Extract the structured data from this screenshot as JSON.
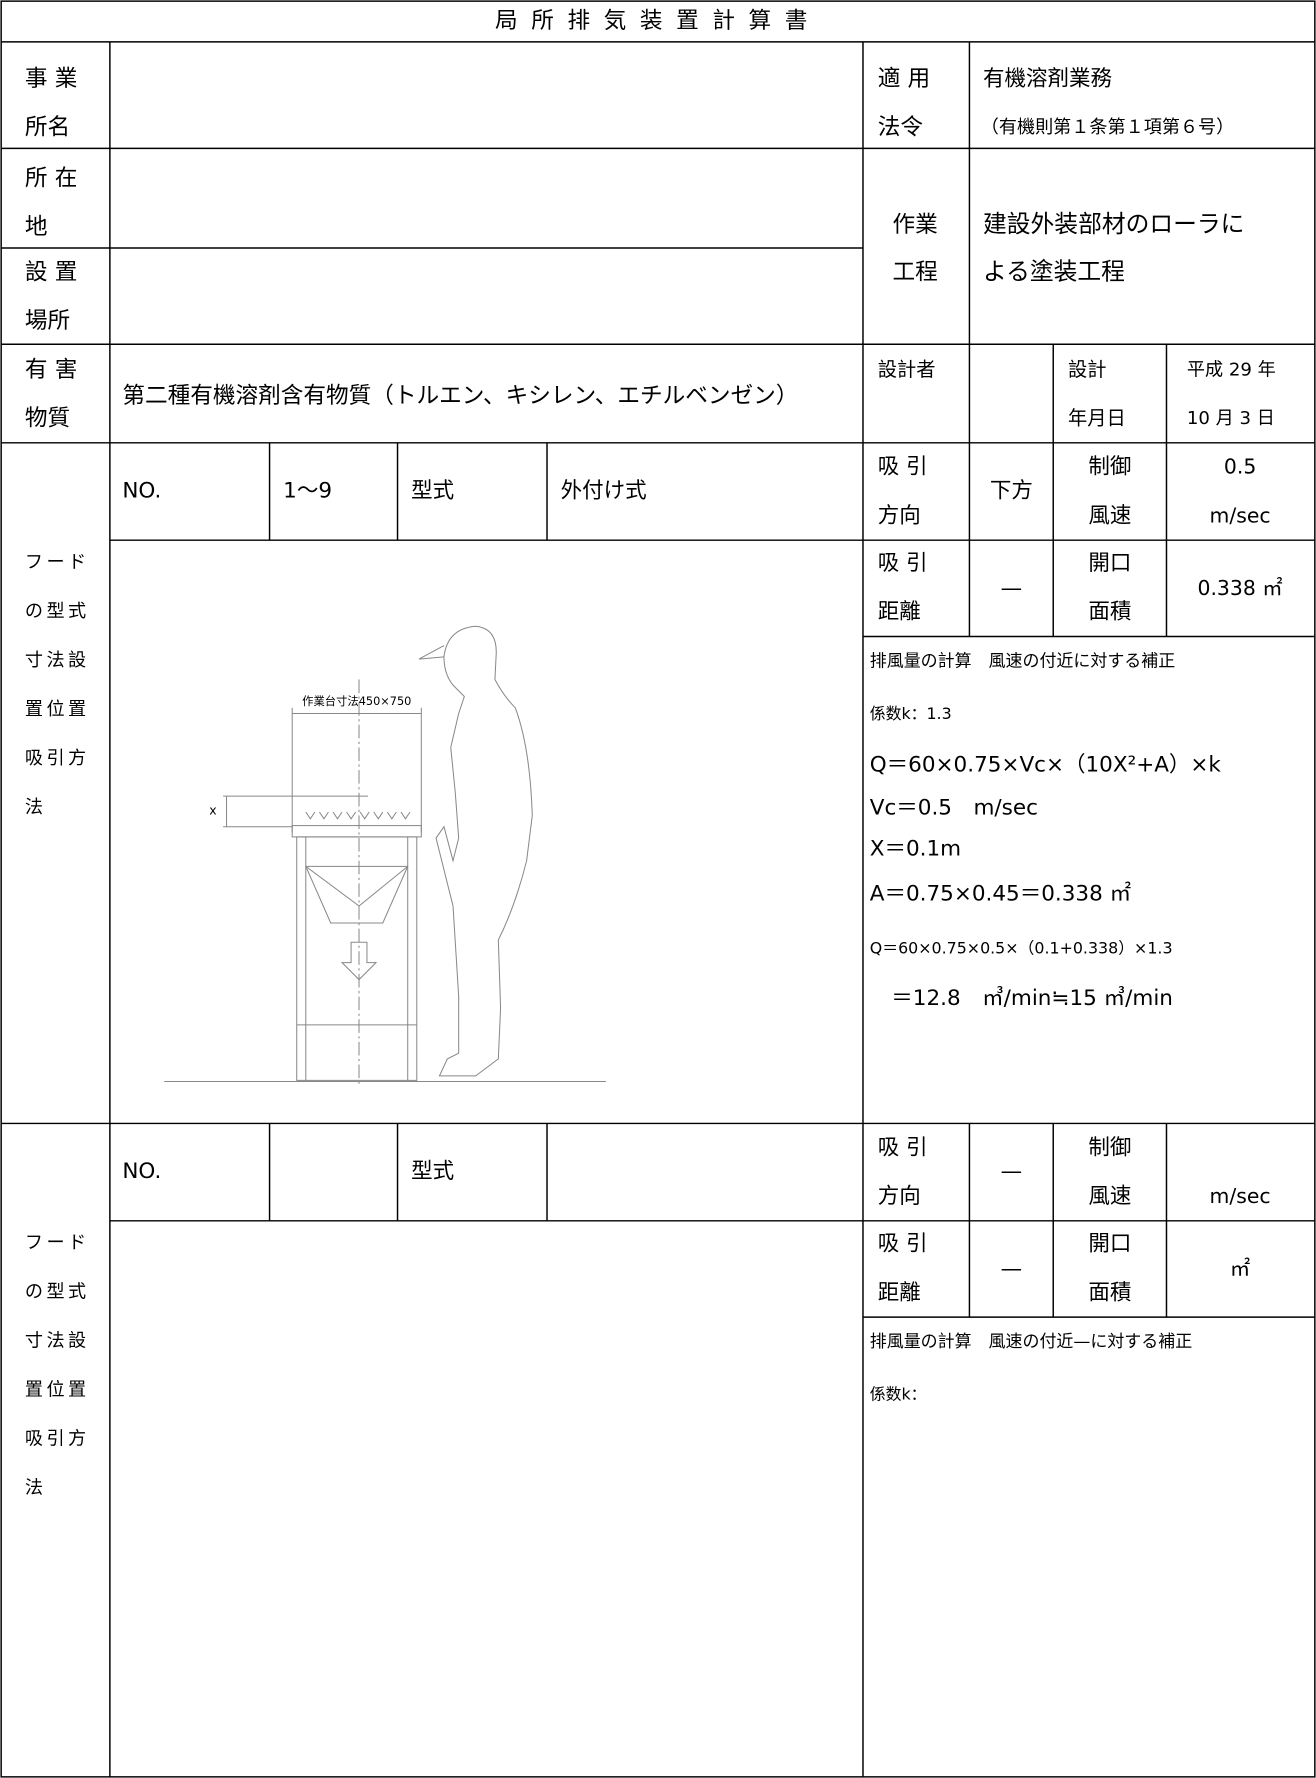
{
  "header": {
    "title": "局所排気装置計算書"
  },
  "info": {
    "office_label": [
      "事 業",
      "所名"
    ],
    "law_label": [
      "適 用",
      "法令"
    ],
    "law": "有機溶剤業務",
    "law_note": "（有機則第１条第１項第６号）",
    "location_label": [
      "所 在",
      "地"
    ],
    "place_label": [
      "設 置",
      "場所"
    ],
    "process_label": [
      "作業",
      "工程"
    ],
    "process": [
      "建設外装部材のローラに",
      "よる塗装工程"
    ],
    "hazard_label": [
      "有 害",
      "物質"
    ],
    "hazard": "第二種有機溶剤含有物質（トルエン、キシレン、エチルベンゼン）",
    "designer_label": "設計者",
    "date_label": [
      "設計",
      "年月日"
    ],
    "date": [
      "平成 29 年",
      "10 月 3 日"
    ]
  },
  "hoods": [
    {
      "no_label": "NO.",
      "no": "1～9",
      "type_label": "型式",
      "type": "外付け式",
      "direction_label": [
        "吸 引",
        "方向"
      ],
      "direction": "下方",
      "velocity_label": [
        "制御",
        "風速"
      ],
      "velocity": [
        "0.5",
        "m/sec"
      ],
      "distance_label": [
        "吸 引",
        "距離"
      ],
      "distance": "—",
      "area_label": [
        "開口",
        "面積"
      ],
      "area": "0.338 ㎡",
      "side_label": [
        "フード",
        "の型式",
        "寸法設",
        "置位置",
        "吸引方",
        "法"
      ],
      "calc": [
        "排風量の計算　風速の付近に対する補正",
        "係数k：1.3",
        "Q＝60×0.75×Vc×（10X²+A）×k",
        "Vc＝0.5　m/sec",
        "X＝0.1m",
        "A＝0.75×0.45＝0.338 ㎡",
        "Q＝60×0.75×0.5×（0.1+0.338）×1.3",
        "　＝12.8　㎥/min≒15 ㎥/min"
      ],
      "drawing_labels": [
        "作業台寸法450×750",
        "x"
      ]
    },
    {
      "no_label": "NO.",
      "type_label": "型式",
      "direction_label": [
        "吸 引",
        "方向"
      ],
      "direction": "—",
      "velocity_label": [
        "制御",
        "風速"
      ],
      "velocity": [
        "m/sec"
      ],
      "distance_label": [
        "吸 引",
        "距離"
      ],
      "distance": "—",
      "area_label": [
        "開口",
        "面積"
      ],
      "area": "㎡",
      "side_label": [
        "フード",
        "の型式",
        "寸法設",
        "置位置",
        "吸引方",
        "法"
      ],
      "calc": [
        "排風量の計算　風速の付近—に対する補正",
        "係数k："
      ]
    }
  ]
}
